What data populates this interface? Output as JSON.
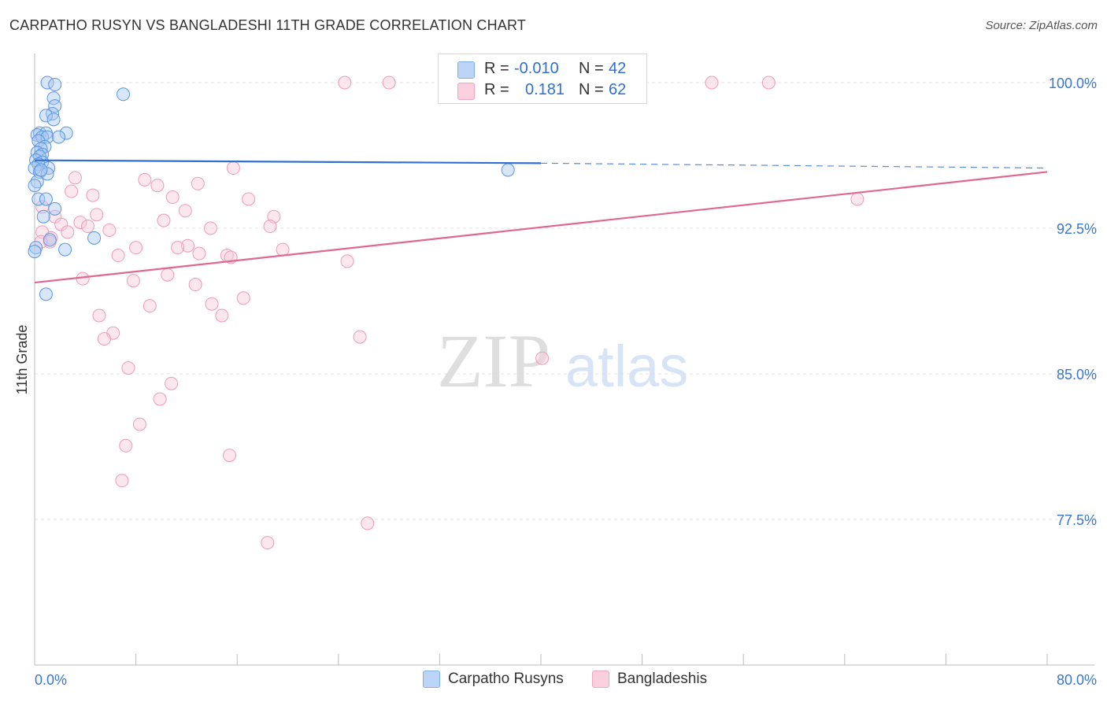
{
  "title": "CARPATHO RUSYN VS BANGLADESHI 11TH GRADE CORRELATION CHART",
  "source": "Source: ZipAtlas.com",
  "watermark": {
    "zip": "ZIP",
    "atlas": "atlas"
  },
  "legend": {
    "rows": [
      {
        "r_label": "R =",
        "r_value": "-0.010",
        "n_label": "N =",
        "n_value": "42",
        "color": "#7fb0ee"
      },
      {
        "r_label": "R =",
        "r_value": "0.181",
        "n_label": "N =",
        "n_value": "62",
        "color": "#f4a6c0"
      }
    ]
  },
  "bottom_legend": [
    {
      "label": "Carpatho Rusyns",
      "color": "#7fb0ee"
    },
    {
      "label": "Bangladeshis",
      "color": "#f4a6c0"
    }
  ],
  "chart_data": {
    "type": "scatter",
    "title": "CARPATHO RUSYN VS BANGLADESHI 11TH GRADE CORRELATION CHART",
    "xlabel": "",
    "ylabel": "11th Grade",
    "xlim": [
      0,
      80
    ],
    "ylim": [
      70,
      101.5
    ],
    "x_tick_labels": [
      "0.0%",
      "80.0%"
    ],
    "y_ticks": [
      77.5,
      85.0,
      92.5,
      100.0
    ],
    "y_tick_labels": [
      "77.5%",
      "85.0%",
      "92.5%",
      "100.0%"
    ],
    "grid": true,
    "series": [
      {
        "name": "Carpatho Rusyns",
        "color": "#7fb0ee",
        "line_color": "#2f6fd0",
        "trend": {
          "x0": 0,
          "y0": 96.0,
          "x1": 40,
          "y1": 95.85,
          "dashed_to_x": 80,
          "dashed_to_y": 95.6
        },
        "points": [
          [
            1.0,
            100.0
          ],
          [
            1.6,
            99.9
          ],
          [
            7.0,
            99.4
          ],
          [
            1.5,
            99.2
          ],
          [
            1.6,
            98.8
          ],
          [
            1.4,
            98.4
          ],
          [
            0.9,
            98.3
          ],
          [
            1.5,
            98.1
          ],
          [
            0.4,
            97.4
          ],
          [
            0.9,
            97.4
          ],
          [
            2.5,
            97.4
          ],
          [
            0.2,
            97.3
          ],
          [
            0.6,
            97.2
          ],
          [
            1.0,
            97.2
          ],
          [
            1.9,
            97.2
          ],
          [
            0.3,
            97.0
          ],
          [
            0.8,
            96.7
          ],
          [
            0.5,
            96.6
          ],
          [
            0.2,
            96.4
          ],
          [
            0.6,
            96.3
          ],
          [
            0.4,
            96.2
          ],
          [
            0.1,
            96.0
          ],
          [
            0.6,
            95.9
          ],
          [
            0.3,
            95.8
          ],
          [
            1.1,
            95.6
          ],
          [
            0.0,
            95.6
          ],
          [
            0.4,
            95.4
          ],
          [
            1.0,
            95.3
          ],
          [
            0.2,
            94.9
          ],
          [
            0.0,
            94.7
          ],
          [
            0.3,
            94.0
          ],
          [
            0.9,
            94.0
          ],
          [
            1.6,
            93.5
          ],
          [
            0.7,
            93.1
          ],
          [
            37.4,
            95.5
          ],
          [
            4.7,
            92.0
          ],
          [
            1.2,
            91.9
          ],
          [
            2.4,
            91.4
          ],
          [
            0.1,
            91.5
          ],
          [
            0.0,
            91.3
          ],
          [
            0.9,
            89.1
          ],
          [
            0.5,
            95.5
          ]
        ]
      },
      {
        "name": "Bangladeshis",
        "color": "#f4a6c0",
        "line_color": "#e06890",
        "trend": {
          "x0": 0,
          "y0": 89.7,
          "x1": 80,
          "y1": 95.4
        },
        "points": [
          [
            24.5,
            100.0
          ],
          [
            28.0,
            100.0
          ],
          [
            53.5,
            100.0
          ],
          [
            58.0,
            100.0
          ],
          [
            15.7,
            95.6
          ],
          [
            3.2,
            95.1
          ],
          [
            8.7,
            95.0
          ],
          [
            12.9,
            94.8
          ],
          [
            9.7,
            94.7
          ],
          [
            2.9,
            94.4
          ],
          [
            4.6,
            94.2
          ],
          [
            10.9,
            94.1
          ],
          [
            16.9,
            94.0
          ],
          [
            65.0,
            94.0
          ],
          [
            0.6,
            93.6
          ],
          [
            11.9,
            93.4
          ],
          [
            4.9,
            93.2
          ],
          [
            18.9,
            93.1
          ],
          [
            1.6,
            93.1
          ],
          [
            10.2,
            92.9
          ],
          [
            3.6,
            92.8
          ],
          [
            2.1,
            92.7
          ],
          [
            4.2,
            92.6
          ],
          [
            18.6,
            92.6
          ],
          [
            13.9,
            92.5
          ],
          [
            5.9,
            92.4
          ],
          [
            2.6,
            92.3
          ],
          [
            0.6,
            92.3
          ],
          [
            1.3,
            92.0
          ],
          [
            1.2,
            91.8
          ],
          [
            0.5,
            91.8
          ],
          [
            12.1,
            91.6
          ],
          [
            11.3,
            91.5
          ],
          [
            8.0,
            91.5
          ],
          [
            19.6,
            91.4
          ],
          [
            13.0,
            91.2
          ],
          [
            15.2,
            91.1
          ],
          [
            6.6,
            91.1
          ],
          [
            15.5,
            91.0
          ],
          [
            24.7,
            90.8
          ],
          [
            10.5,
            90.1
          ],
          [
            3.8,
            89.9
          ],
          [
            7.8,
            89.8
          ],
          [
            12.7,
            89.6
          ],
          [
            16.5,
            88.9
          ],
          [
            14.0,
            88.6
          ],
          [
            9.1,
            88.5
          ],
          [
            14.8,
            88.0
          ],
          [
            5.1,
            88.0
          ],
          [
            6.2,
            87.1
          ],
          [
            5.5,
            86.8
          ],
          [
            25.7,
            86.9
          ],
          [
            40.1,
            85.8
          ],
          [
            7.4,
            85.3
          ],
          [
            10.8,
            84.5
          ],
          [
            9.9,
            83.7
          ],
          [
            8.3,
            82.4
          ],
          [
            7.2,
            81.3
          ],
          [
            15.4,
            80.8
          ],
          [
            6.9,
            79.5
          ],
          [
            26.3,
            77.3
          ],
          [
            18.4,
            76.3
          ]
        ]
      }
    ]
  }
}
